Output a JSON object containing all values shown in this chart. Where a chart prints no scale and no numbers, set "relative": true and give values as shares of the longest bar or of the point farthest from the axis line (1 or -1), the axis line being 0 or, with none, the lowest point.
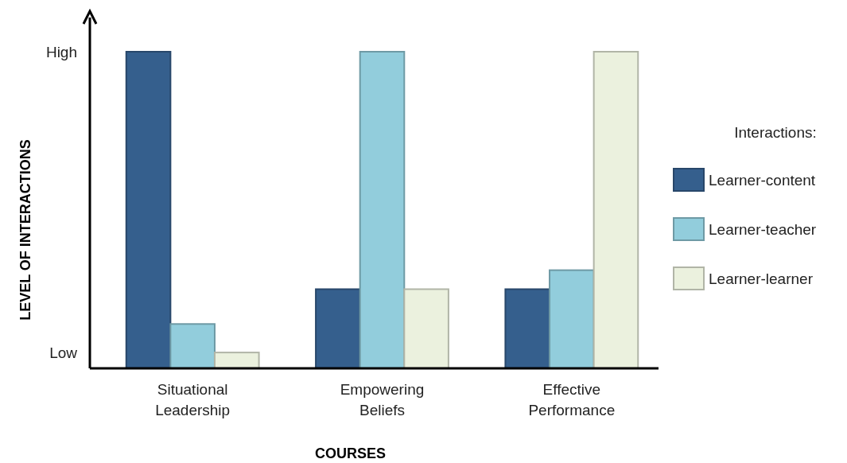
{
  "chart_data": {
    "type": "bar",
    "xlabel": "COURSES",
    "ylabel": "LEVEL OF INTERACTIONS",
    "legend_title": "Interactions:",
    "legend": "right",
    "categories": [
      "Situational Leadership",
      "Empowering Beliefs",
      "Effective Performance"
    ],
    "relative": true,
    "annotations": [
      "High",
      "Low"
    ],
    "series": [
      {
        "name": "Learner-content",
        "color": "#355f8d",
        "values": [
          1,
          0.25,
          0.25
        ]
      },
      {
        "name": "Learner-teacher",
        "color": "#92cddc",
        "values": [
          0.14,
          1,
          0.31
        ]
      },
      {
        "name": "Learner-learner",
        "color": "#ebf1de",
        "values": [
          0.05,
          0.25,
          1
        ]
      }
    ]
  }
}
